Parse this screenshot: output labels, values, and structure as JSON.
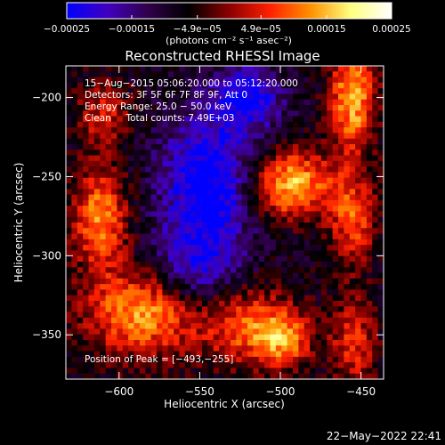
{
  "chart_data": {
    "type": "heatmap",
    "title": "Reconstructed RHESSI Image",
    "xlabel": "Heliocentric X (arcsec)",
    "ylabel": "Heliocentric Y (arcsec)",
    "xlim": [
      -633,
      -436
    ],
    "ylim": [
      -378,
      -180
    ],
    "x_ticks": [
      -600,
      -550,
      -500,
      -450
    ],
    "y_ticks": [
      -200,
      -250,
      -300,
      -350
    ],
    "x_tick_labels": [
      "−600",
      "−550",
      "−500",
      "−450"
    ],
    "y_tick_labels": [
      "−200",
      "−250",
      "−300",
      "−350"
    ],
    "colorbar": {
      "min": -0.00025,
      "max": 0.00025,
      "tick_values": [
        -0.00025,
        -0.00015,
        -4.9e-05,
        4.9e-05,
        0.00015,
        0.00025
      ],
      "tick_labels": [
        "−0.00025",
        "−0.00015",
        "−4.9e−05",
        "4.9e−05",
        "0.00015",
        "0.00025"
      ],
      "units_label": "(photons cm⁻² s⁻¹ asec⁻²)"
    },
    "annotations": [
      "15−Aug−2015 05:06:20.000 to 05:12:20.000",
      "Detectors: 3F 5F 6F 7F 8F 9F, Att 0",
      "Energy Range: 25.0 − 50.0 keV",
      "Clean     Total counts: 7.49E+03"
    ],
    "peak_label": "Position of Peak = [−493,−255]",
    "peak_position": [
      -493,
      -255
    ],
    "colormap": [
      "#0000ff",
      "#4000c0",
      "#30004a",
      "#000000",
      "#8a0000",
      "#ff2000",
      "#ff9000",
      "#ffff80",
      "#ffffff"
    ],
    "sources": [
      {
        "x": -493,
        "y": -255,
        "amp": 0.00024,
        "sx": 18,
        "sy": 15
      },
      {
        "x": -455,
        "y": -200,
        "amp": 0.00023,
        "sx": 10,
        "sy": 25
      },
      {
        "x": -455,
        "y": -278,
        "amp": 0.00016,
        "sx": 10,
        "sy": 20
      },
      {
        "x": -612,
        "y": -275,
        "amp": 0.0002,
        "sx": 12,
        "sy": 22
      },
      {
        "x": -585,
        "y": -335,
        "amp": 0.00022,
        "sx": 25,
        "sy": 20
      },
      {
        "x": -610,
        "y": -210,
        "amp": 0.00012,
        "sx": 12,
        "sy": 14
      },
      {
        "x": -520,
        "y": -345,
        "amp": 0.00016,
        "sx": 20,
        "sy": 18
      },
      {
        "x": -497,
        "y": -353,
        "amp": 0.00016,
        "sx": 12,
        "sy": 12
      },
      {
        "x": -455,
        "y": -355,
        "amp": 0.00014,
        "sx": 10,
        "sy": 20
      },
      {
        "x": -545,
        "y": -255,
        "amp": -0.0002,
        "sx": 20,
        "sy": 30
      },
      {
        "x": -520,
        "y": -200,
        "amp": -0.00016,
        "sx": 15,
        "sy": 15
      },
      {
        "x": -555,
        "y": -310,
        "amp": -0.00013,
        "sx": 20,
        "sy": 18
      }
    ]
  },
  "timestamp": "22−May−2022 22:41"
}
